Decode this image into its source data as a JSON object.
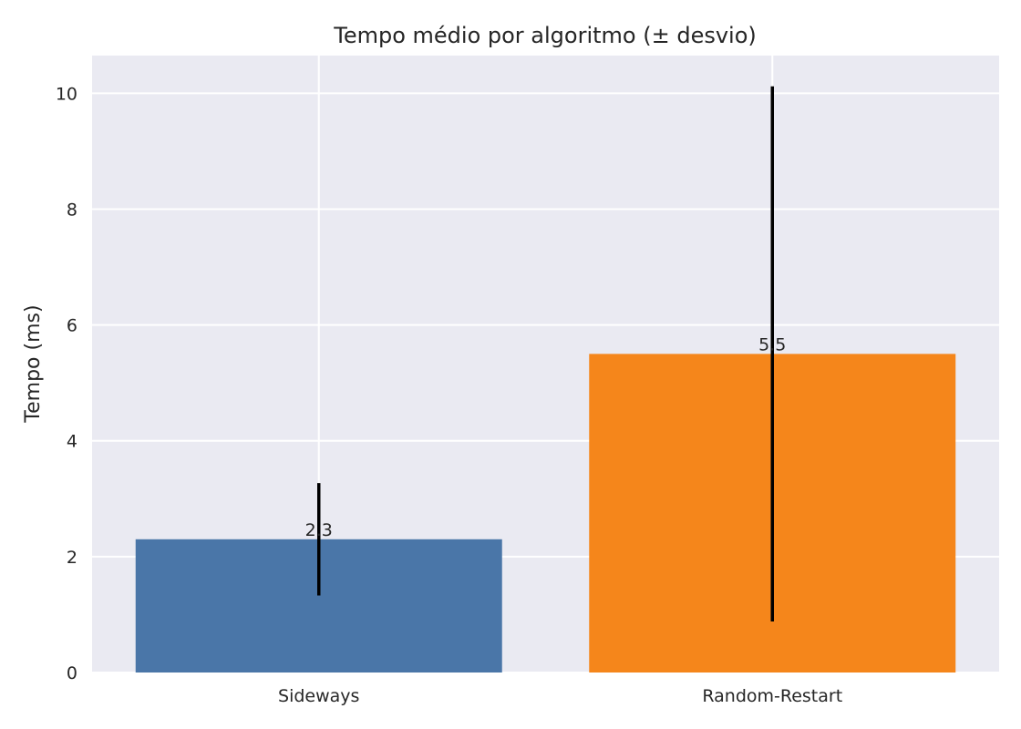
{
  "chart_data": {
    "type": "bar",
    "title": "Tempo médio por algoritmo (± desvio)",
    "xlabel": "",
    "ylabel": "Tempo (ms)",
    "categories": [
      "Sideways",
      "Random-Restart"
    ],
    "values": [
      2.3,
      5.5
    ],
    "errors": [
      0.97,
      4.62
    ],
    "value_labels": [
      "2.3",
      "5.5"
    ],
    "colors": [
      "#4a76a8",
      "#f5861b"
    ],
    "ylim": [
      0,
      10.65
    ],
    "yticks": [
      0,
      2,
      4,
      6,
      8,
      10
    ],
    "grid": true,
    "style": {
      "plot_background": "#eaeaf2",
      "grid_color": "#ffffff",
      "error_bar_color": "#000000"
    }
  }
}
